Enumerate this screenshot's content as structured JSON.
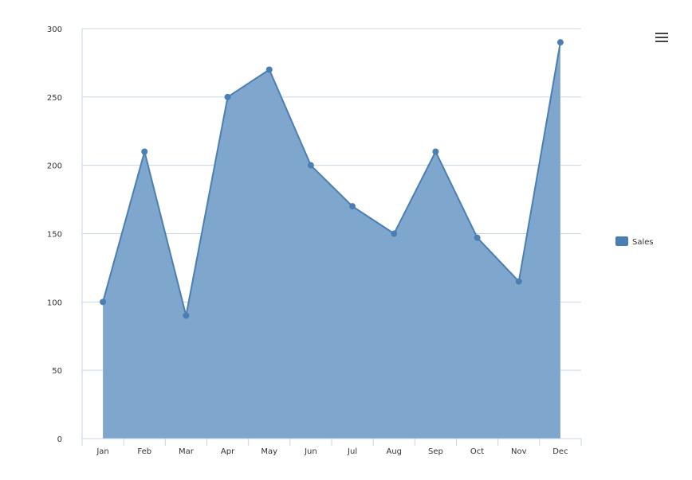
{
  "chart_data": {
    "type": "area",
    "title": "",
    "xlabel": "",
    "ylabel": "",
    "categories": [
      "Jan",
      "Feb",
      "Mar",
      "Apr",
      "May",
      "Jun",
      "Jul",
      "Aug",
      "Sep",
      "Oct",
      "Nov",
      "Dec"
    ],
    "series": [
      {
        "name": "Sales",
        "values": [
          100,
          210,
          90,
          250,
          270,
          200,
          170,
          150,
          210,
          147,
          115,
          290
        ]
      }
    ],
    "ylim": [
      0,
      300
    ],
    "yticks": [
      0,
      50,
      100,
      150,
      200,
      250,
      300
    ],
    "ytick_labels": [
      "0",
      "50",
      "100",
      "150",
      "200",
      "250",
      "300"
    ],
    "grid": "horizontal",
    "legend_position": "right",
    "colors": {
      "fill": "#7fa6cd",
      "line": "#4b7fb3",
      "grid": "#c7d6e3",
      "axis": "#c7d6e3"
    }
  },
  "menu": {
    "icon": "hamburger-menu-icon"
  }
}
